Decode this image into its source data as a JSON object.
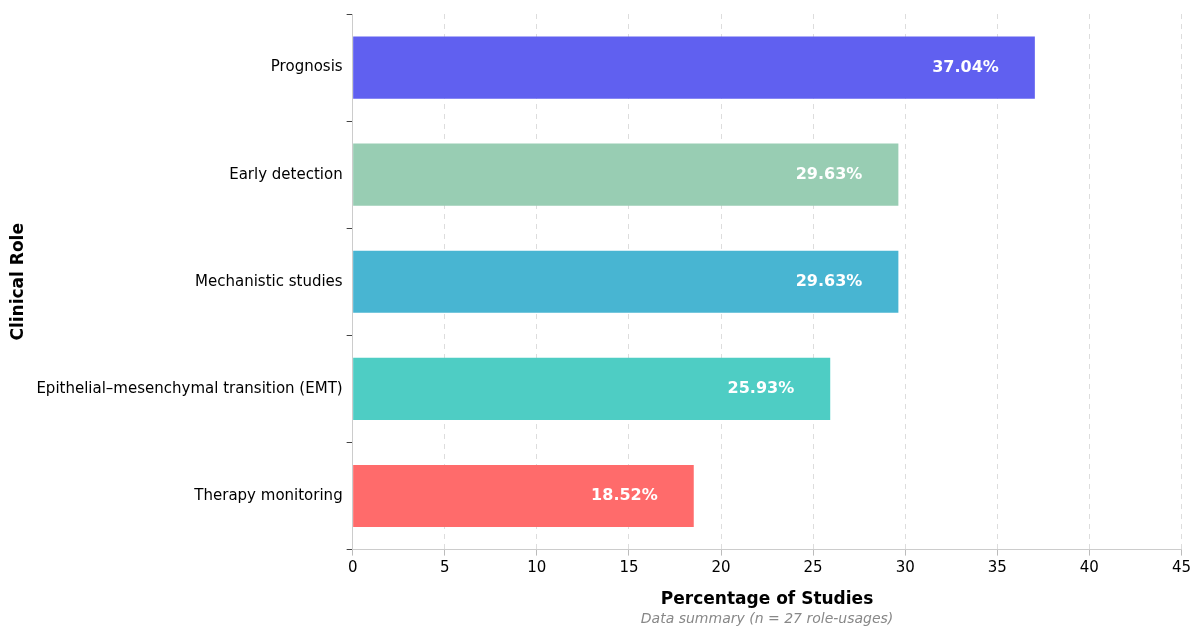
{
  "chart_data": {
    "type": "bar",
    "orientation": "horizontal",
    "xlabel": "Percentage of Studies",
    "ylabel": "Clinical Role",
    "categories": [
      "Prognosis",
      "Early detection",
      "Mechanistic studies",
      "Epithelial–mesenchymal transition (EMT)",
      "Therapy monitoring"
    ],
    "values": [
      37.04,
      29.63,
      29.63,
      25.93,
      18.52
    ],
    "value_labels": [
      "37.04%",
      "29.63%",
      "29.63%",
      "25.93%",
      "18.52%"
    ],
    "colors": [
      "#6060f0",
      "#98cdb3",
      "#48b5d2",
      "#4ecdc4",
      "#ff6b6b"
    ],
    "xlim": [
      0,
      45
    ],
    "xticks": [
      0,
      5,
      10,
      15,
      20,
      25,
      30,
      35,
      40,
      45
    ],
    "grid": "x",
    "annotations": [
      "Data summary (n = 27 role-usages)"
    ]
  }
}
